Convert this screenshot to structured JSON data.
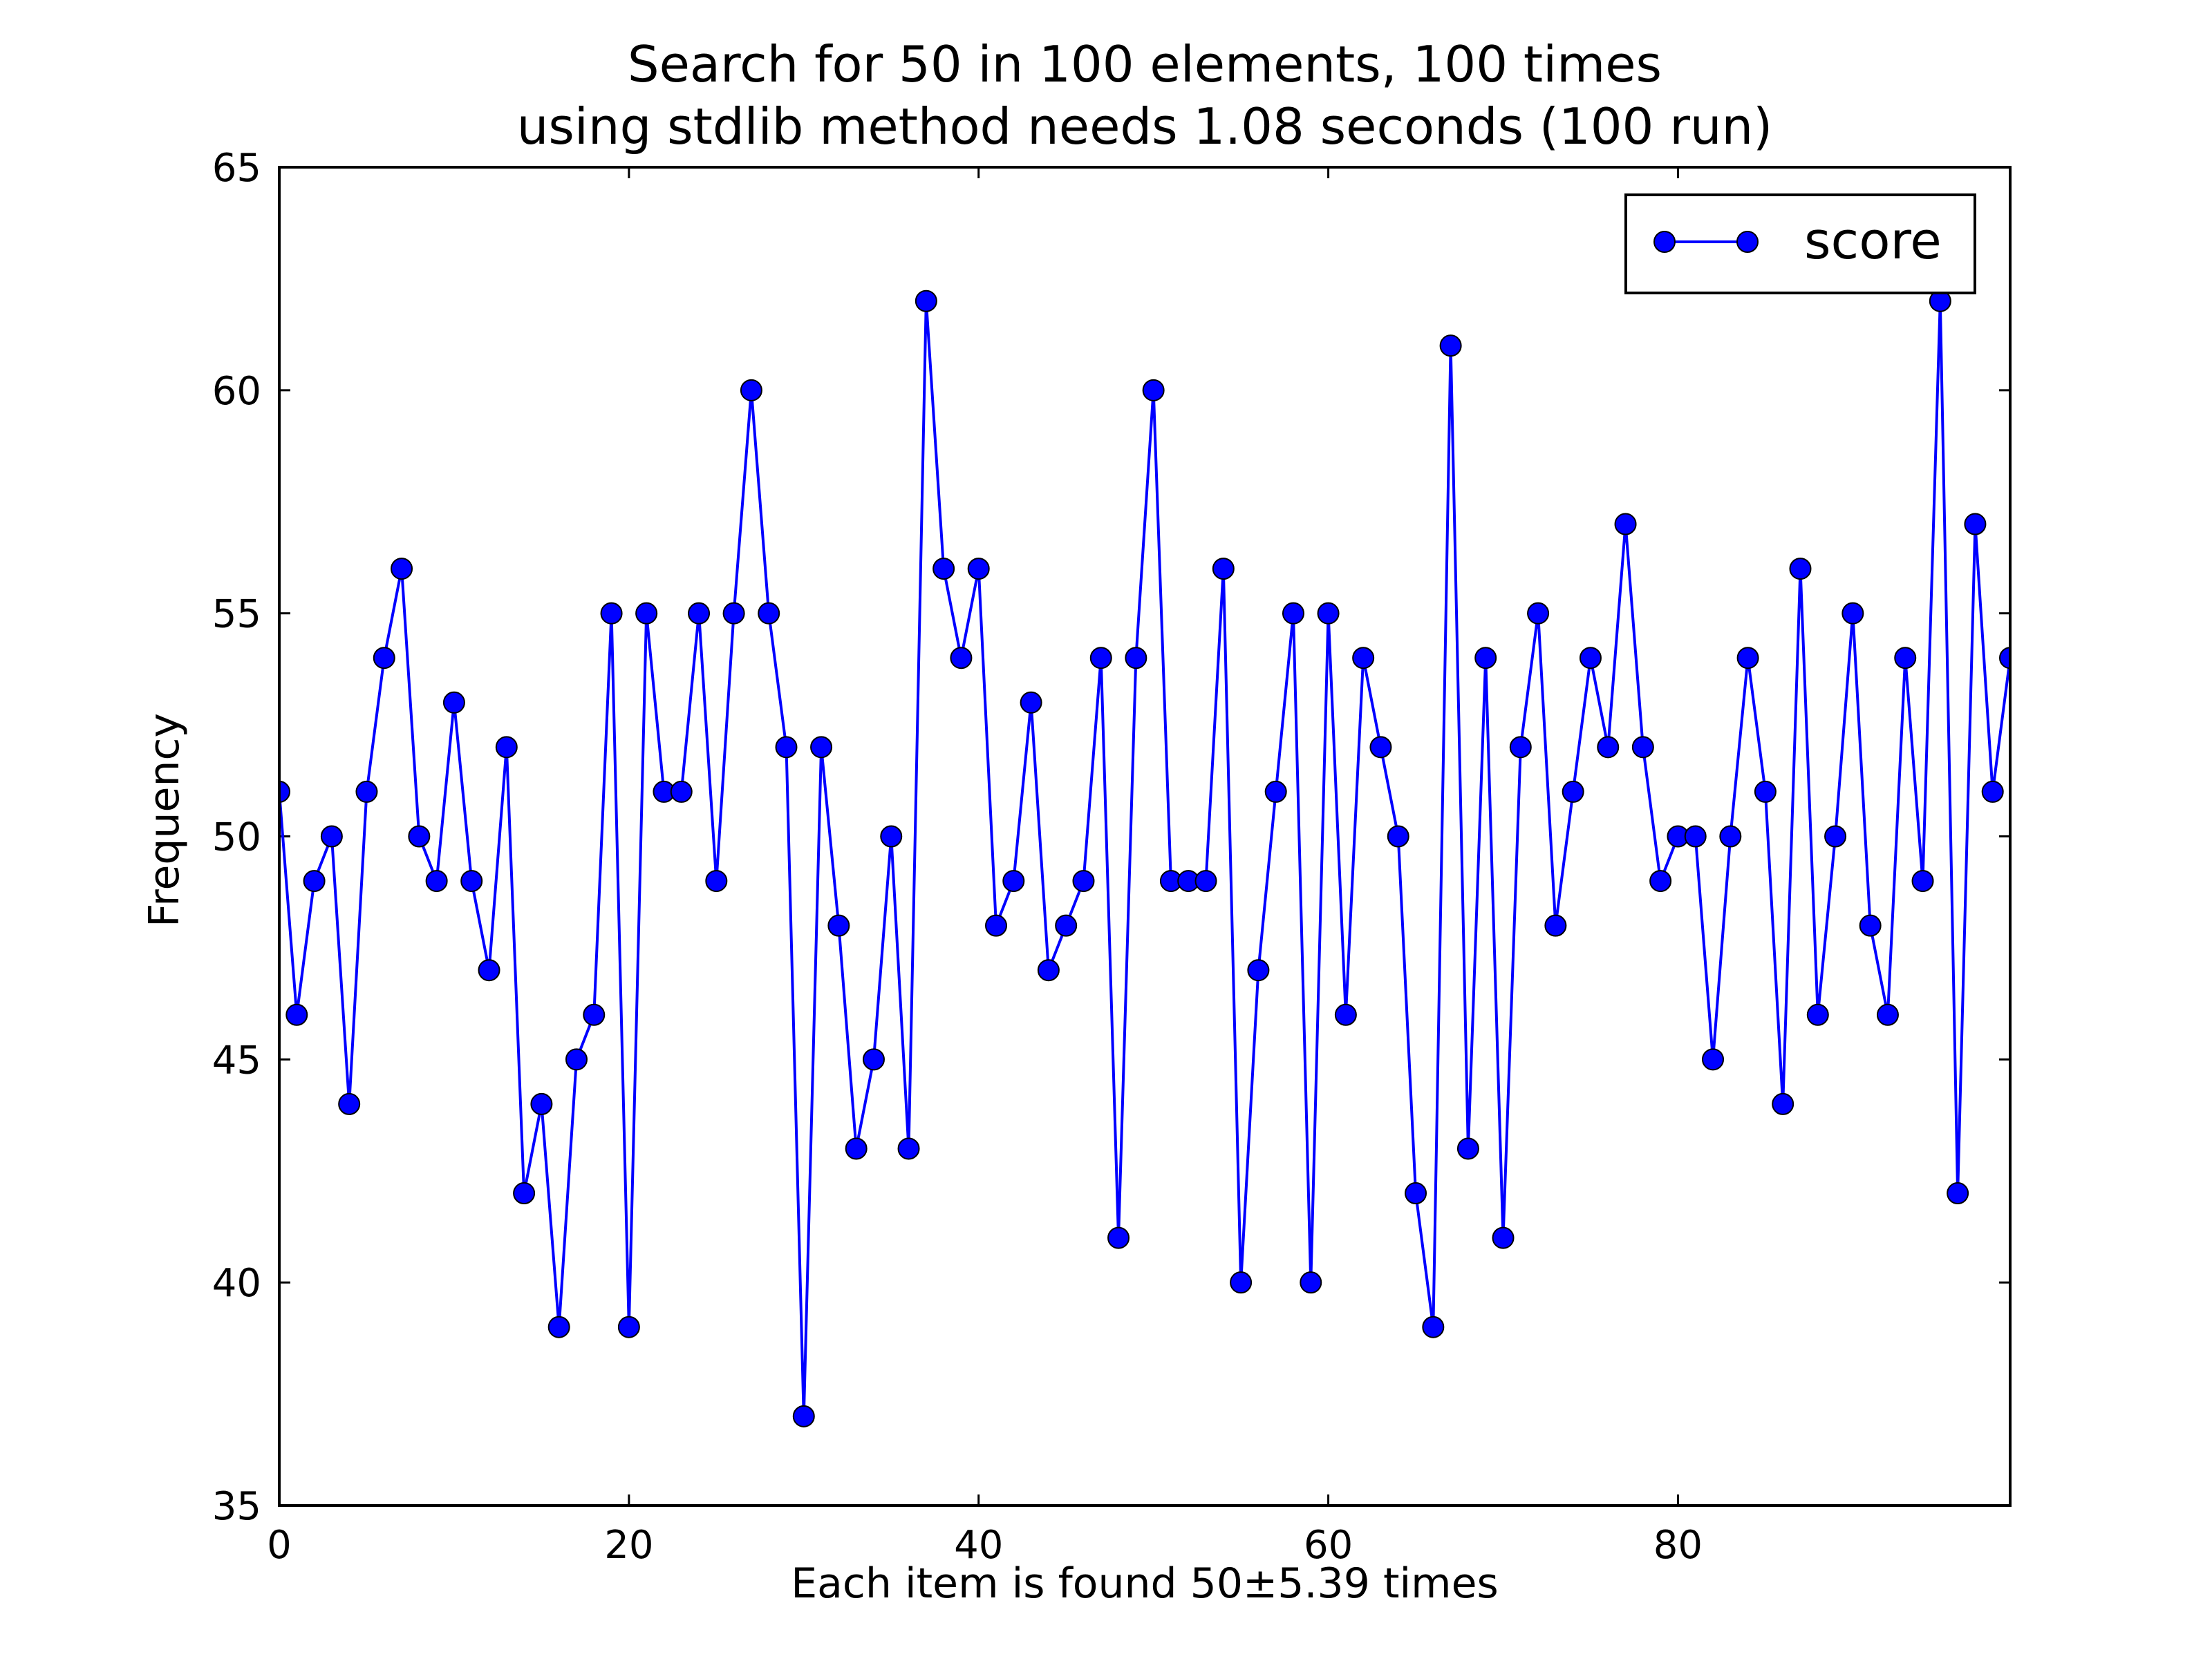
{
  "chart_data": {
    "type": "line",
    "title_line1": "Search for 50 in 100 elements, 100 times",
    "title_line2": "using stdlib method needs 1.08 seconds (100 run)",
    "xlabel": "Each item is found 50±5.39 times",
    "ylabel": "Frequency",
    "xlim": [
      0,
      99
    ],
    "ylim": [
      35,
      65
    ],
    "xticks": [
      0,
      20,
      40,
      60,
      80
    ],
    "yticks": [
      35,
      40,
      45,
      50,
      55,
      60,
      65
    ],
    "grid": false,
    "legend_position": "top-right",
    "series": [
      {
        "name": "score",
        "color": "#0000ff",
        "marker": "circle",
        "values": [
          51,
          46,
          49,
          50,
          44,
          51,
          54,
          56,
          50,
          49,
          53,
          49,
          47,
          52,
          42,
          44,
          39,
          45,
          46,
          55,
          39,
          55,
          51,
          51,
          55,
          49,
          55,
          60,
          55,
          52,
          37,
          52,
          48,
          43,
          45,
          50,
          43,
          62,
          56,
          54,
          56,
          48,
          49,
          53,
          47,
          48,
          49,
          54,
          41,
          54,
          60,
          49,
          49,
          49,
          56,
          40,
          47,
          51,
          55,
          40,
          55,
          46,
          54,
          52,
          50,
          42,
          39,
          61,
          43,
          54,
          41,
          52,
          55,
          48,
          51,
          54,
          52,
          57,
          52,
          49,
          50,
          50,
          45,
          50,
          54,
          51,
          44,
          56,
          46,
          50,
          55,
          48,
          46,
          54,
          49,
          62,
          42,
          57,
          51,
          54
        ]
      }
    ]
  }
}
